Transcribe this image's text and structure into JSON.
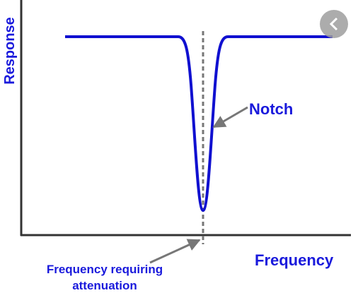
{
  "diagram": {
    "y_axis_label": "Response",
    "x_axis_label": "Frequency",
    "notch_label": "Notch",
    "attenuation_label_lines": [
      "Frequency requiring",
      "attenuation"
    ]
  }
}
